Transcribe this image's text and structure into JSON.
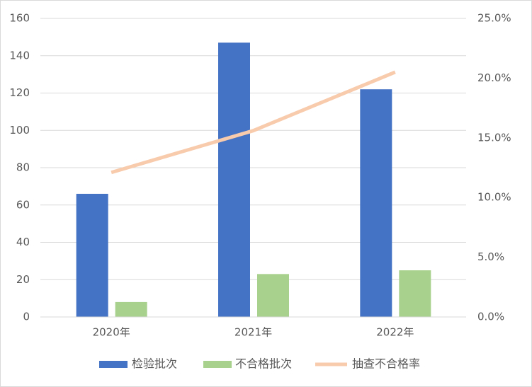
{
  "chart_data": {
    "type": "bar-line",
    "categories": [
      "2020年",
      "2021年",
      "2022年"
    ],
    "series": [
      {
        "name": "检验批次",
        "color": "#4472c4",
        "values": [
          66,
          147,
          122
        ]
      },
      {
        "name": "不合格批次",
        "color": "#a9d18e",
        "values": [
          8,
          23,
          25
        ]
      },
      {
        "name": "抽查不合格率",
        "color": "#f8cbad",
        "type": "line",
        "axis": "y2",
        "values": [
          12.1,
          15.6,
          20.5
        ]
      }
    ],
    "ylim": [
      0,
      160
    ],
    "yticks": [
      0,
      20,
      40,
      60,
      80,
      100,
      120,
      140,
      160
    ],
    "y2lim": [
      0,
      25
    ],
    "y2ticks": [
      {
        "value": 0,
        "label": "0.0%"
      },
      {
        "value": 5,
        "label": "5.0%"
      },
      {
        "value": 10,
        "label": "10.0%"
      },
      {
        "value": 15,
        "label": "15.0%"
      },
      {
        "value": 20,
        "label": "20.0%"
      },
      {
        "value": 25,
        "label": "25.0%"
      }
    ],
    "grid": true,
    "legend": "bottom"
  }
}
